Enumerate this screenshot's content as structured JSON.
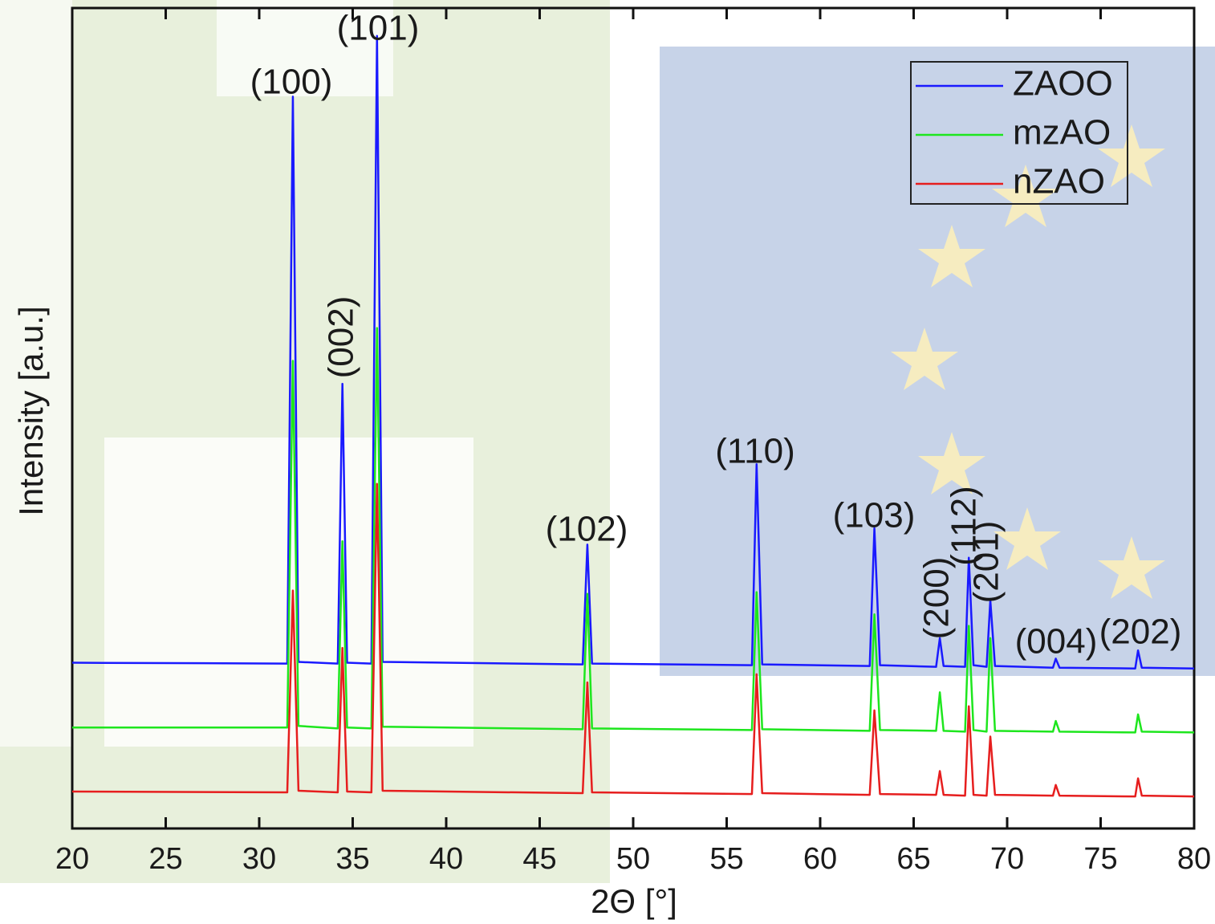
{
  "chart_data": {
    "type": "line",
    "xlabel": "2Θ [°]",
    "ylabel": "Intensity [a.u.]",
    "x": [
      20,
      31.5,
      31.8,
      32.1,
      34.2,
      34.45,
      34.7,
      36.0,
      36.3,
      36.6,
      47.3,
      47.55,
      47.8,
      56.35,
      56.6,
      56.9,
      62.65,
      62.9,
      63.2,
      66.2,
      66.4,
      66.6,
      67.75,
      67.95,
      68.2,
      68.9,
      69.1,
      69.35,
      72.45,
      72.6,
      72.8,
      76.85,
      77.0,
      77.2,
      80
    ],
    "series": [
      {
        "name": "ZAOO",
        "color": "#1a1aff",
        "values": [
          20.2,
          20.1,
          89.2,
          20.3,
          20.1,
          54.2,
          20.2,
          20.1,
          96.6,
          20.3,
          20.0,
          34.6,
          20.1,
          19.9,
          44.4,
          20.0,
          19.8,
          36.6,
          19.9,
          19.7,
          23.2,
          19.8,
          19.7,
          33.0,
          19.9,
          19.7,
          27.8,
          19.8,
          19.6,
          20.7,
          19.6,
          19.5,
          21.7,
          19.6,
          19.5
        ]
      },
      {
        "name": "mzAO",
        "color": "#1ee61e",
        "values": [
          12.3,
          12.3,
          57,
          12.5,
          12.2,
          35,
          12.3,
          12.2,
          61,
          12.4,
          12.1,
          28.6,
          12.2,
          12.0,
          28.8,
          12.1,
          11.9,
          26.1,
          12.0,
          11.9,
          16.6,
          11.9,
          11.8,
          24.7,
          12.0,
          11.8,
          23.2,
          11.9,
          11.8,
          13.1,
          11.8,
          11.7,
          13.9,
          11.8,
          11.7
        ]
      },
      {
        "name": "nZAO",
        "color": "#e61e1e",
        "values": [
          4.5,
          4.4,
          29,
          4.6,
          4.4,
          22,
          4.5,
          4.4,
          42,
          4.6,
          4.3,
          17.8,
          4.4,
          4.2,
          18.8,
          4.3,
          4.1,
          14.4,
          4.2,
          4.1,
          7.0,
          4.1,
          4.0,
          14.9,
          4.1,
          4.0,
          11.2,
          4.1,
          4.0,
          5.3,
          4.0,
          3.9,
          6.1,
          4.0,
          3.9
        ]
      }
    ],
    "annotations": [
      "(100)",
      "(101)",
      "(002)",
      "(102)",
      "(110)",
      "(103)",
      "(200)",
      "(112)",
      "(201)",
      "(004)",
      "(202)"
    ],
    "xlim": [
      20,
      80
    ],
    "xticks": [
      20,
      25,
      30,
      35,
      40,
      45,
      50,
      55,
      60,
      65,
      70,
      75,
      80
    ],
    "ylim": [
      0,
      100
    ],
    "legend": "upper right"
  }
}
